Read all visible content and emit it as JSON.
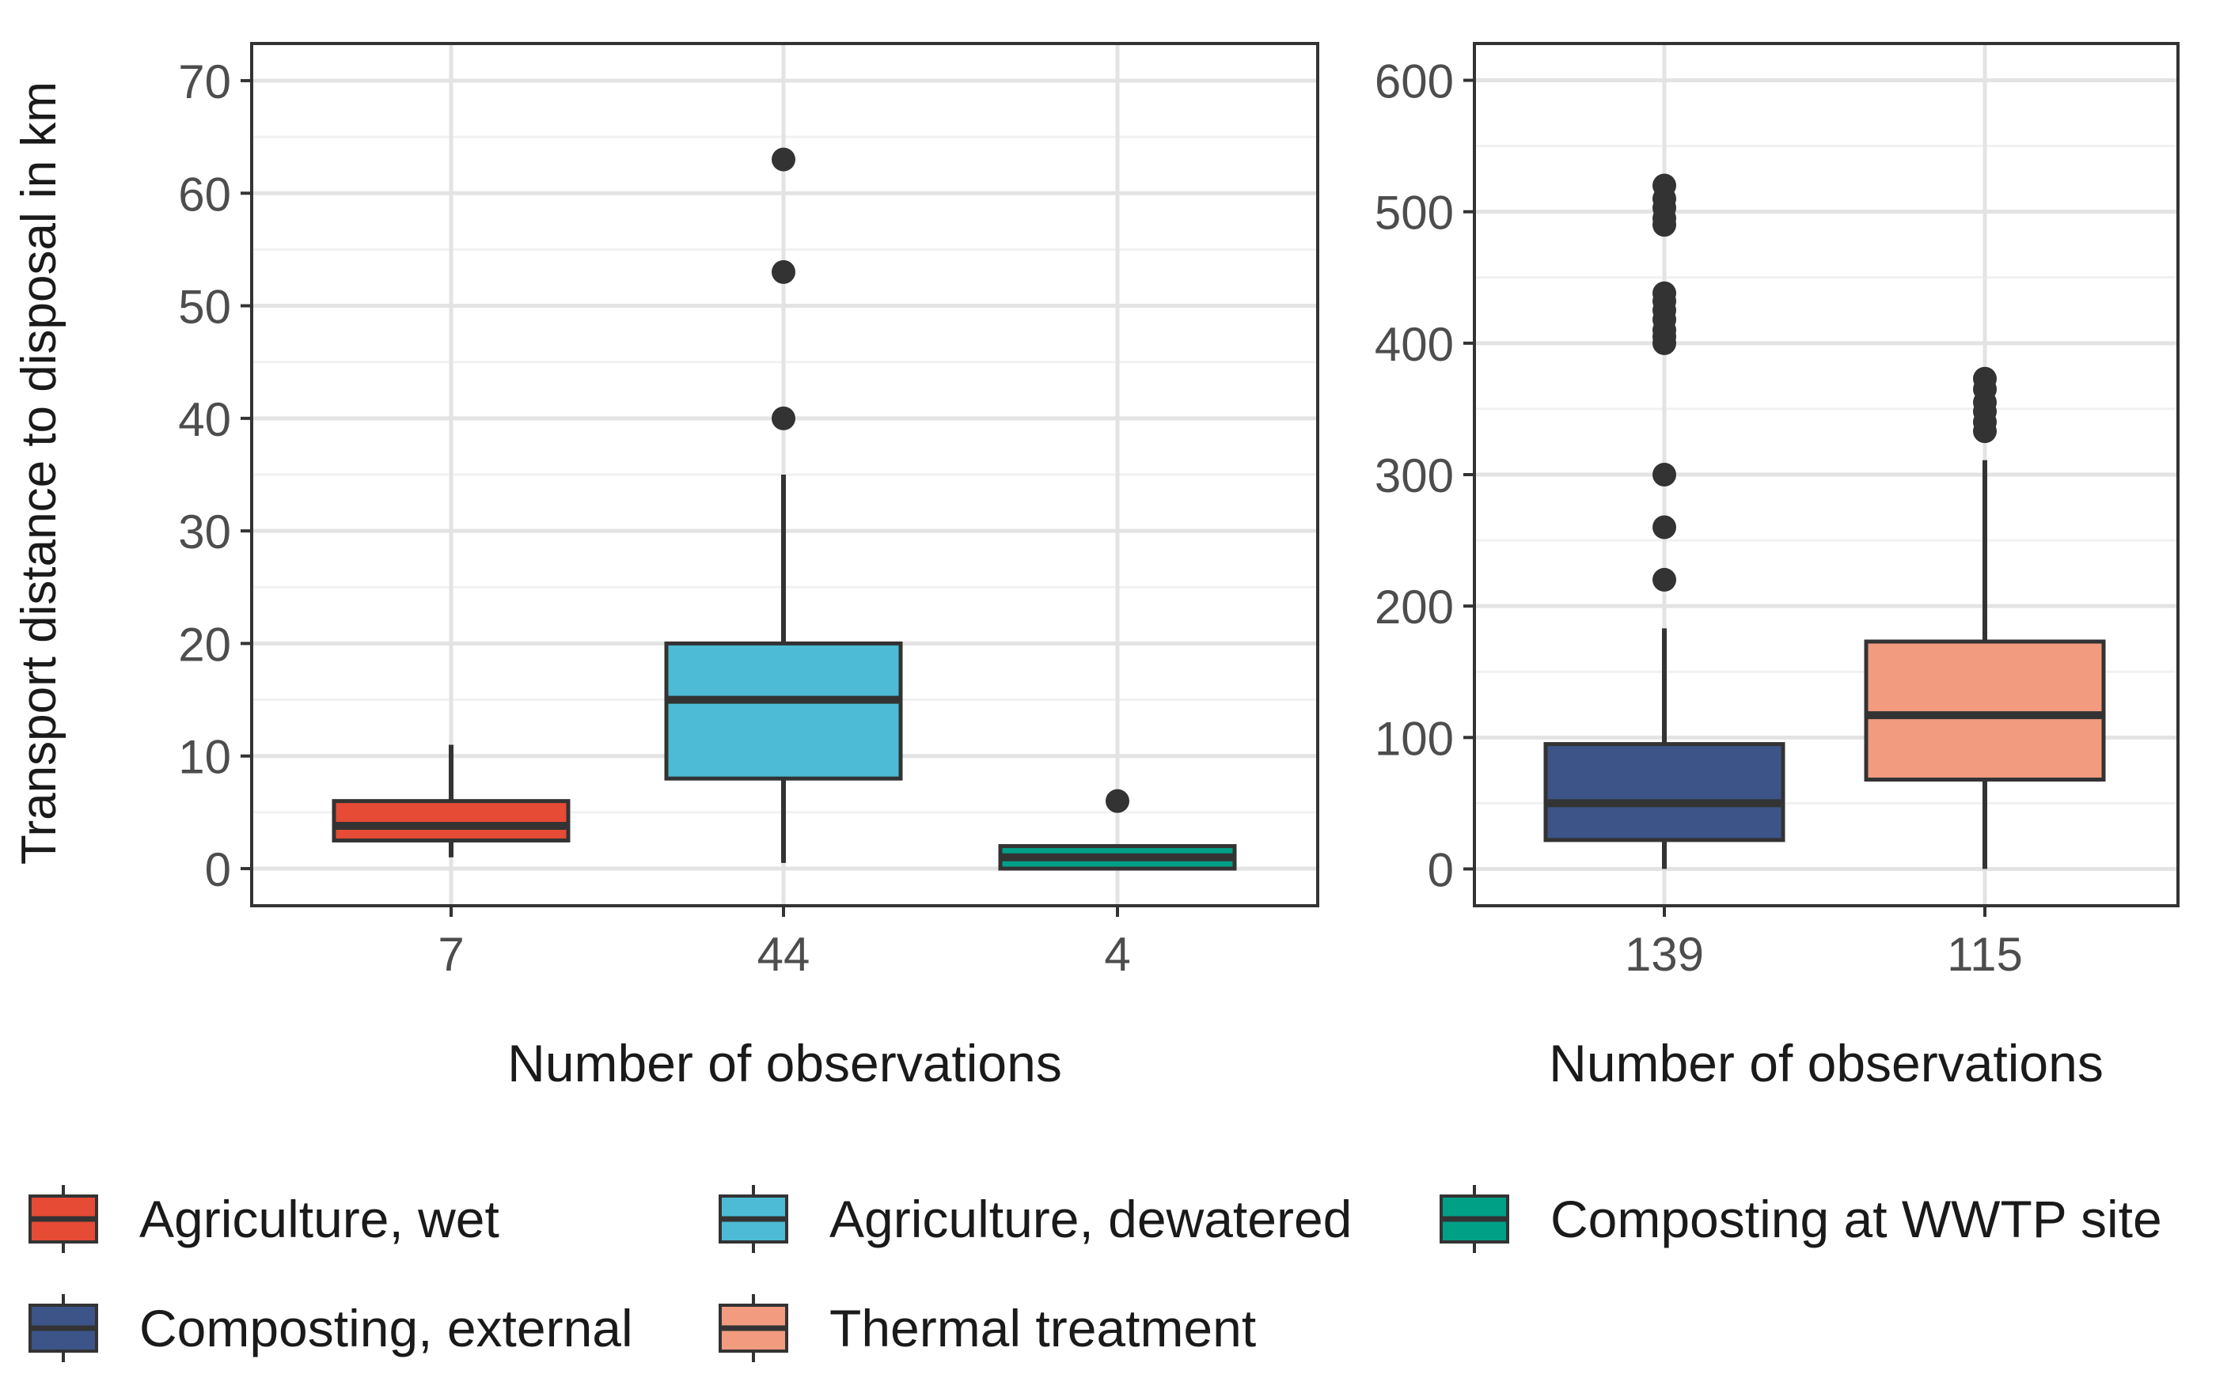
{
  "y_axis_label": "Transport distance to disposal in km",
  "legend": {
    "items": [
      {
        "label": "Agriculture, wet",
        "color": "#E64B35"
      },
      {
        "label": "Agriculture, dewatered",
        "color": "#4DBBD5"
      },
      {
        "label": "Composting at WWTP site",
        "color": "#00A087"
      },
      {
        "label": "Composting, external",
        "color": "#3C5488"
      },
      {
        "label": "Thermal treatment",
        "color": "#F39B7F"
      }
    ]
  },
  "chart_data": [
    {
      "type": "boxplot",
      "xlabel": "Number of observations",
      "ylabel": "Transport distance to disposal in km",
      "ylim": [
        -3.3,
        73.3
      ],
      "yticks": [
        0,
        10,
        20,
        30,
        40,
        50,
        60,
        70
      ],
      "grid": true,
      "categories": [
        "7",
        "44",
        "4"
      ],
      "series": [
        {
          "name": "Agriculture, wet",
          "color": "#E64B35",
          "q1": 2.5,
          "median": 3.8,
          "q3": 6,
          "whisker_low": 1,
          "whisker_high": 11,
          "outliers": []
        },
        {
          "name": "Agriculture, dewatered",
          "color": "#4DBBD5",
          "q1": 8,
          "median": 15,
          "q3": 20,
          "whisker_low": 0.5,
          "whisker_high": 35,
          "outliers": [
            40,
            53,
            63
          ]
        },
        {
          "name": "Composting at WWTP site",
          "color": "#00A087",
          "q1": 0,
          "median": 1,
          "q3": 2,
          "whisker_low": 0,
          "whisker_high": 2,
          "outliers": [
            6
          ]
        }
      ]
    },
    {
      "type": "boxplot",
      "xlabel": "Number of observations",
      "ylabel": "",
      "ylim": [
        -28,
        628
      ],
      "yticks": [
        0,
        100,
        200,
        300,
        400,
        500,
        600
      ],
      "grid": true,
      "categories": [
        "139",
        "115"
      ],
      "series": [
        {
          "name": "Composting, external",
          "color": "#3C5488",
          "q1": 22,
          "median": 50,
          "q3": 95,
          "whisker_low": 0,
          "whisker_high": 183,
          "outliers": [
            220,
            260,
            300,
            400,
            405,
            410,
            418,
            425,
            432,
            438,
            490,
            495,
            503,
            510,
            520
          ]
        },
        {
          "name": "Thermal treatment",
          "color": "#F39B7F",
          "q1": 68,
          "median": 117,
          "q3": 173,
          "whisker_low": 0,
          "whisker_high": 311,
          "outliers": [
            333,
            340,
            348,
            355,
            365,
            373
          ]
        }
      ]
    }
  ]
}
